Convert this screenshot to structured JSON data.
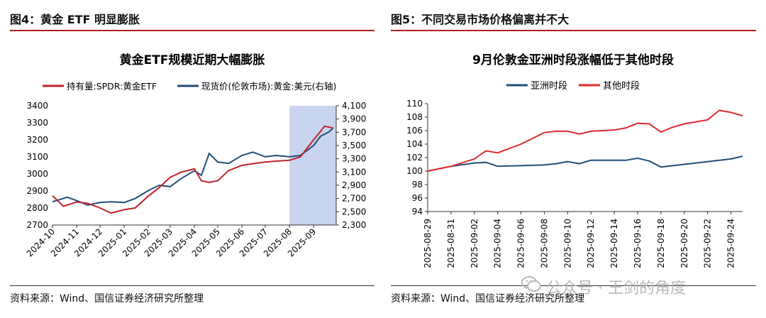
{
  "left_panel": {
    "figure_label": "图4：黄金 ETF 明显膨胀",
    "source": "资料来源：Wind、国信证券经济研究所整理"
  },
  "right_panel": {
    "figure_label": "图5：不同交易市场价格偏离并不大",
    "source": "资料来源：Wind、国信证券经济研究所整理"
  },
  "watermark": {
    "text": "公众号 · 王剑的角度",
    "icon": "wechat-icon"
  },
  "colors": {
    "red": "#e0282c",
    "blue": "#1f4e79",
    "shade": "#c9d4ee",
    "accent": "#b01e24"
  },
  "chart_data": [
    {
      "type": "line",
      "title": "黄金ETF规模近期大幅膨胀",
      "series": [
        {
          "name": "持有量:SPDR:黄金ETF",
          "axis": "left",
          "color": "#c0232a",
          "x": [
            "2024-10-01",
            "2024-10-15",
            "2024-11-01",
            "2024-11-15",
            "2024-12-01",
            "2024-12-15",
            "2025-01-01",
            "2025-01-15",
            "2025-02-01",
            "2025-02-15",
            "2025-03-01",
            "2025-03-15",
            "2025-04-01",
            "2025-04-10",
            "2025-04-20",
            "2025-05-01",
            "2025-05-15",
            "2025-06-01",
            "2025-06-15",
            "2025-07-01",
            "2025-07-15",
            "2025-08-01",
            "2025-08-15",
            "2025-09-01",
            "2025-09-10",
            "2025-09-15",
            "2025-09-26"
          ],
          "values": [
            2872,
            2810,
            2835,
            2828,
            2800,
            2770,
            2790,
            2800,
            2870,
            2920,
            2980,
            3010,
            3030,
            2960,
            2950,
            2960,
            3020,
            3050,
            3060,
            3070,
            3075,
            3080,
            3100,
            3200,
            3250,
            3280,
            3270
          ]
        },
        {
          "name": "现货价(伦敦市场):黄金:美元(右轴)",
          "axis": "right",
          "color": "#1f4e79",
          "x": [
            "2024-10-01",
            "2024-10-20",
            "2024-11-05",
            "2024-11-15",
            "2024-12-01",
            "2024-12-15",
            "2025-01-01",
            "2025-01-15",
            "2025-02-01",
            "2025-02-15",
            "2025-03-01",
            "2025-03-15",
            "2025-04-01",
            "2025-04-10",
            "2025-04-20",
            "2025-05-01",
            "2025-05-15",
            "2025-06-01",
            "2025-06-15",
            "2025-07-01",
            "2025-07-15",
            "2025-08-01",
            "2025-08-15",
            "2025-09-01",
            "2025-09-10",
            "2025-09-20",
            "2025-09-26"
          ],
          "values": [
            2650,
            2720,
            2650,
            2600,
            2640,
            2650,
            2640,
            2700,
            2820,
            2900,
            2880,
            3000,
            3120,
            3050,
            3380,
            3250,
            3230,
            3350,
            3400,
            3330,
            3350,
            3330,
            3350,
            3500,
            3640,
            3700,
            3760
          ]
        }
      ],
      "y_left": {
        "min": 2700,
        "max": 3400,
        "ticks": [
          "3400",
          "3300",
          "3200",
          "3100",
          "3000",
          "2900",
          "2800",
          "2700"
        ]
      },
      "y_right": {
        "min": 2300,
        "max": 4100,
        "ticks": [
          "4,100",
          "3,900",
          "3,700",
          "3,500",
          "3,300",
          "3,100",
          "2,900",
          "2,700",
          "2,500",
          "2,300"
        ]
      },
      "x_ticks": [
        "2024-10",
        "2024-11",
        "2024-12",
        "2025-01",
        "2025-02",
        "2025-03",
        "2025-04",
        "2025-05",
        "2025-06",
        "2025-07",
        "2025-08",
        "2025-09"
      ],
      "shaded_range": [
        "2025-08-01",
        "2025-09-30"
      ],
      "grid": false,
      "legend_position": "top-left"
    },
    {
      "type": "line",
      "title": "9月伦敦金亚洲时段涨幅低于其他时段",
      "x": [
        "2025-08-29",
        "2025-08-31",
        "2025-09-02",
        "2025-09-03",
        "2025-09-04",
        "2025-09-06",
        "2025-09-08",
        "2025-09-09",
        "2025-09-10",
        "2025-09-11",
        "2025-09-12",
        "2025-09-14",
        "2025-09-15",
        "2025-09-16",
        "2025-09-17",
        "2025-09-18",
        "2025-09-19",
        "2025-09-20",
        "2025-09-22",
        "2025-09-23",
        "2025-09-24",
        "2025-09-25"
      ],
      "series": [
        {
          "name": "亚洲时段",
          "color": "#1f4e79",
          "values": [
            100.0,
            100.7,
            101.2,
            101.3,
            100.7,
            100.8,
            100.9,
            101.1,
            101.4,
            101.1,
            101.6,
            101.6,
            101.6,
            101.9,
            101.5,
            100.6,
            100.8,
            101.0,
            101.4,
            101.6,
            101.8,
            102.2
          ]
        },
        {
          "name": "其他时段",
          "color": "#e0282c",
          "values": [
            100.0,
            100.7,
            101.8,
            103.0,
            102.7,
            104.0,
            105.7,
            105.9,
            105.9,
            105.5,
            105.9,
            106.1,
            106.4,
            107.1,
            107.0,
            105.8,
            106.5,
            107.0,
            107.6,
            109.0,
            108.7,
            108.2
          ]
        }
      ],
      "ylim": [
        94,
        110
      ],
      "y_ticks": [
        "110",
        "108",
        "106",
        "104",
        "102",
        "100",
        "98",
        "96",
        "94"
      ],
      "x_ticks": [
        "2025-08-29",
        "2025-08-31",
        "2025-09-02",
        "2025-09-04",
        "2025-09-06",
        "2025-09-08",
        "2025-09-10",
        "2025-09-12",
        "2025-09-14",
        "2025-09-16",
        "2025-09-18",
        "2025-09-20",
        "2025-09-22",
        "2025-09-24"
      ],
      "grid": false,
      "legend_position": "top"
    }
  ]
}
